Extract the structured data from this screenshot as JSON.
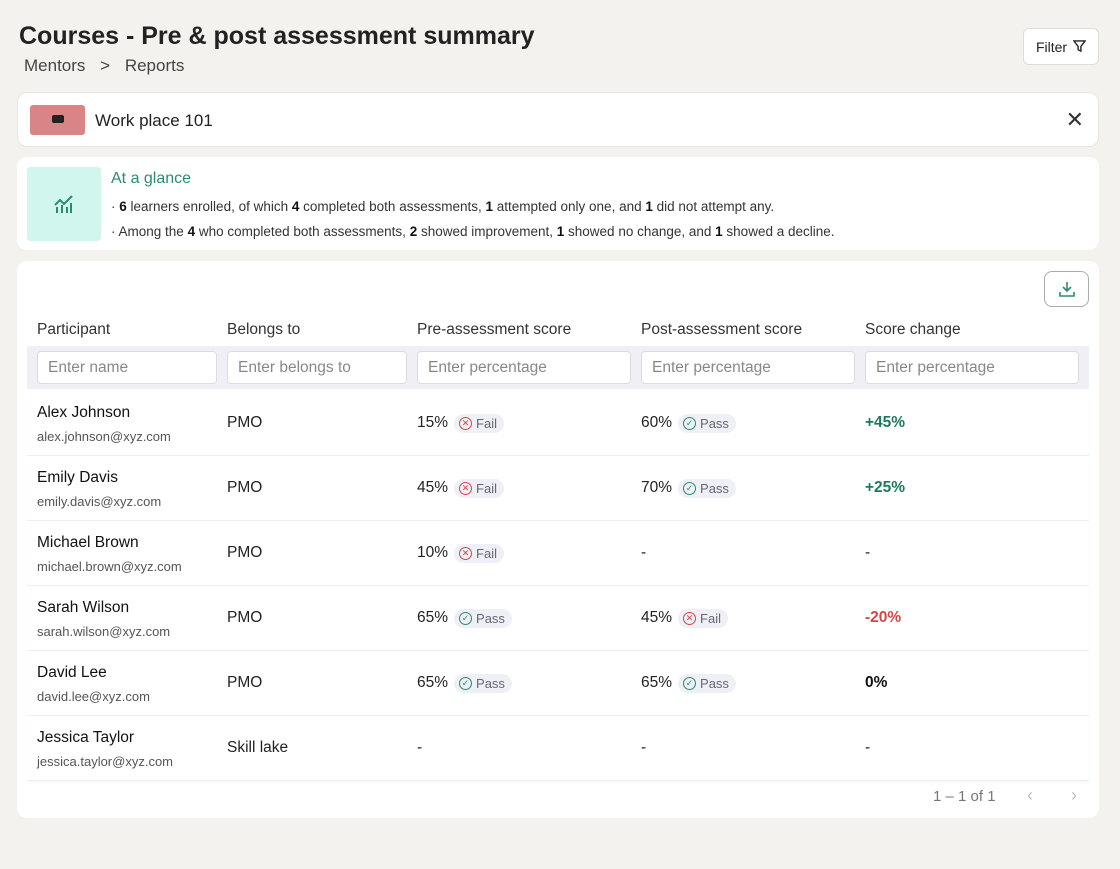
{
  "header": {
    "title": "Courses - Pre & post assessment summary",
    "breadcrumb": [
      "Mentors",
      ">",
      "Reports"
    ],
    "filter_label": "Filter"
  },
  "course": {
    "name": "Work place 101"
  },
  "glance": {
    "title": "At a glance",
    "line1": [
      {
        "t": "6",
        "b": true
      },
      {
        "t": " learners enrolled, of which "
      },
      {
        "t": "4",
        "b": true
      },
      {
        "t": " completed both assessments, "
      },
      {
        "t": "1",
        "b": true
      },
      {
        "t": " attempted only one, and "
      },
      {
        "t": "1",
        "b": true
      },
      {
        "t": " did not attempt any."
      }
    ],
    "line2": [
      {
        "t": "Among the "
      },
      {
        "t": "4",
        "b": true
      },
      {
        "t": " who completed both assessments, "
      },
      {
        "t": "2",
        "b": true
      },
      {
        "t": " showed improvement, "
      },
      {
        "t": "1",
        "b": true
      },
      {
        "t": " showed no change, and "
      },
      {
        "t": "1",
        "b": true
      },
      {
        "t": " showed a decline."
      }
    ]
  },
  "table": {
    "columns": [
      "Participant",
      "Belongs to",
      "Pre-assessment score",
      "Post-assessment score",
      "Score change"
    ],
    "placeholders": [
      "Enter name",
      "Enter belongs to",
      "Enter percentage",
      "Enter percentage",
      "Enter percentage"
    ],
    "rows": [
      {
        "name": "Alex Johnson",
        "email": "alex.johnson@xyz.com",
        "group": "PMO",
        "pre": "15%",
        "pre_status": "Fail",
        "post": "60%",
        "post_status": "Pass",
        "change": "+45%",
        "trend": "pos"
      },
      {
        "name": "Emily Davis",
        "email": "emily.davis@xyz.com",
        "group": "PMO",
        "pre": "45%",
        "pre_status": "Fail",
        "post": "70%",
        "post_status": "Pass",
        "change": "+25%",
        "trend": "pos"
      },
      {
        "name": "Michael Brown",
        "email": "michael.brown@xyz.com",
        "group": "PMO",
        "pre": "10%",
        "pre_status": "Fail",
        "post": "-",
        "post_status": "",
        "change": "-",
        "trend": ""
      },
      {
        "name": "Sarah Wilson",
        "email": "sarah.wilson@xyz.com",
        "group": "PMO",
        "pre": "65%",
        "pre_status": "Pass",
        "post": "45%",
        "post_status": "Fail",
        "change": "-20%",
        "trend": "neg"
      },
      {
        "name": "David Lee",
        "email": "david.lee@xyz.com",
        "group": "PMO",
        "pre": "65%",
        "pre_status": "Pass",
        "post": "65%",
        "post_status": "Pass",
        "change": "0%",
        "trend": "zero"
      },
      {
        "name": "Jessica Taylor",
        "email": "jessica.taylor@xyz.com",
        "group": "Skill lake",
        "pre": "-",
        "pre_status": "",
        "post": "-",
        "post_status": "",
        "change": "-",
        "trend": ""
      }
    ]
  },
  "pagination": {
    "label": "1 – 1 of 1"
  },
  "colors": {
    "pass": "#2b8a74",
    "fail": "#d04848",
    "accent": "#2b8a74"
  }
}
